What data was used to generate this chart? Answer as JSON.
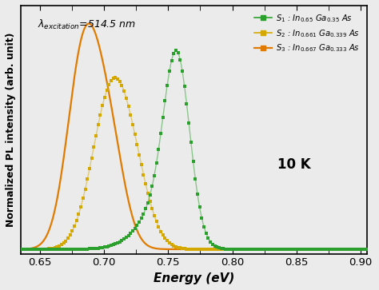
{
  "xlim": [
    0.635,
    0.905
  ],
  "ylim": [
    -0.02,
    1.08
  ],
  "xlabel": "Energy (eV)",
  "ylabel": "Normalized PL intensity (arb. unit)",
  "annotation_temp": "10 K",
  "s1_label": "$S_1$ : $In_{0.65}$ $Ga_{0.35}$ $As$",
  "s2_label": "$S_2$ : $In_{0.661}$ $Ga_{0.339}$ $As$",
  "s3_label": "$S_3$ : $In_{0.667}$ $Ga_{0.333}$ $As$",
  "s1_color": "#2ca02c",
  "s2_color": "#d4a800",
  "s3_color": "#e07b00",
  "xticks": [
    0.65,
    0.7,
    0.75,
    0.8,
    0.85,
    0.9
  ],
  "background_color": "#ebebeb",
  "figsize": [
    4.74,
    3.63
  ],
  "dpi": 100
}
